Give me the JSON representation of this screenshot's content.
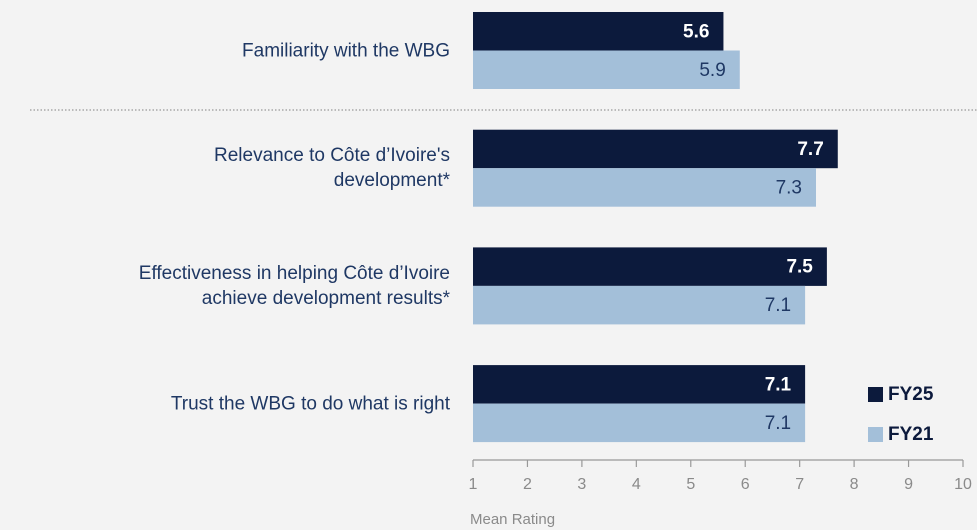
{
  "chart_data": {
    "type": "barh",
    "categories": [
      "Familiarity with the WBG",
      "Relevance to Côte d’Ivoire's\ndevelopment*",
      "Effectiveness in helping Côte d’Ivoire\nachieve development results*",
      "Trust the WBG to do what is right"
    ],
    "series": [
      {
        "name": "FY25",
        "color": "#0c1a3c",
        "values": [
          5.6,
          7.7,
          7.5,
          7.1
        ]
      },
      {
        "name": "FY21",
        "color": "#a3bfd9",
        "values": [
          5.9,
          7.3,
          7.1,
          7.1
        ]
      }
    ],
    "xlim": [
      1,
      10
    ],
    "xticks": [
      1,
      2,
      3,
      4,
      5,
      6,
      7,
      8,
      9,
      10
    ],
    "xlabel": "Mean Rating",
    "legend": "lower right"
  }
}
